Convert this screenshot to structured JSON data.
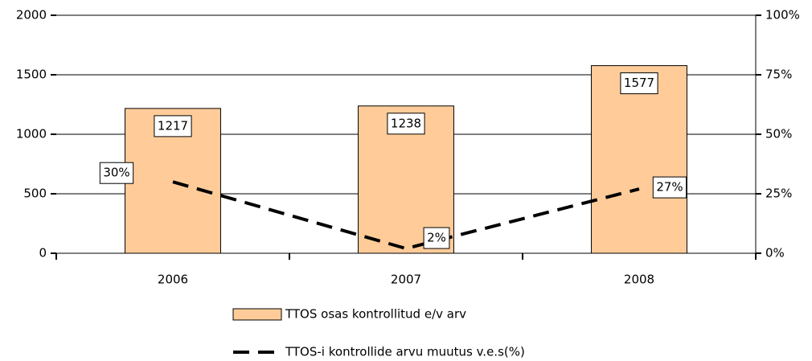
{
  "chart_data": {
    "type": "combo",
    "categories": [
      "2006",
      "2007",
      "2008"
    ],
    "series": [
      {
        "name": "TTOS osas kontrollitud e/v arv",
        "type": "bar",
        "color": "#ffcc99",
        "values": [
          1217,
          1238,
          1577
        ]
      },
      {
        "name": "TTOS-i kontrollide arvu muutus v.e.s(%)",
        "type": "line",
        "axis": "y2",
        "color": "#000000",
        "values": [
          30,
          2,
          27
        ],
        "value_labels": [
          "30%",
          "2%",
          "27%"
        ]
      }
    ],
    "ylim": [
      0,
      2000
    ],
    "yticks": [
      0,
      500,
      1000,
      1500,
      2000
    ],
    "y2lim": [
      0,
      100
    ],
    "y2ticks": [
      {
        "value": 0,
        "label": "0%"
      },
      {
        "value": 25,
        "label": "25%"
      },
      {
        "value": 50,
        "label": "50%"
      },
      {
        "value": 75,
        "label": "75%"
      },
      {
        "value": 100,
        "label": "100%"
      }
    ],
    "grid": true,
    "legend": "bottom"
  }
}
